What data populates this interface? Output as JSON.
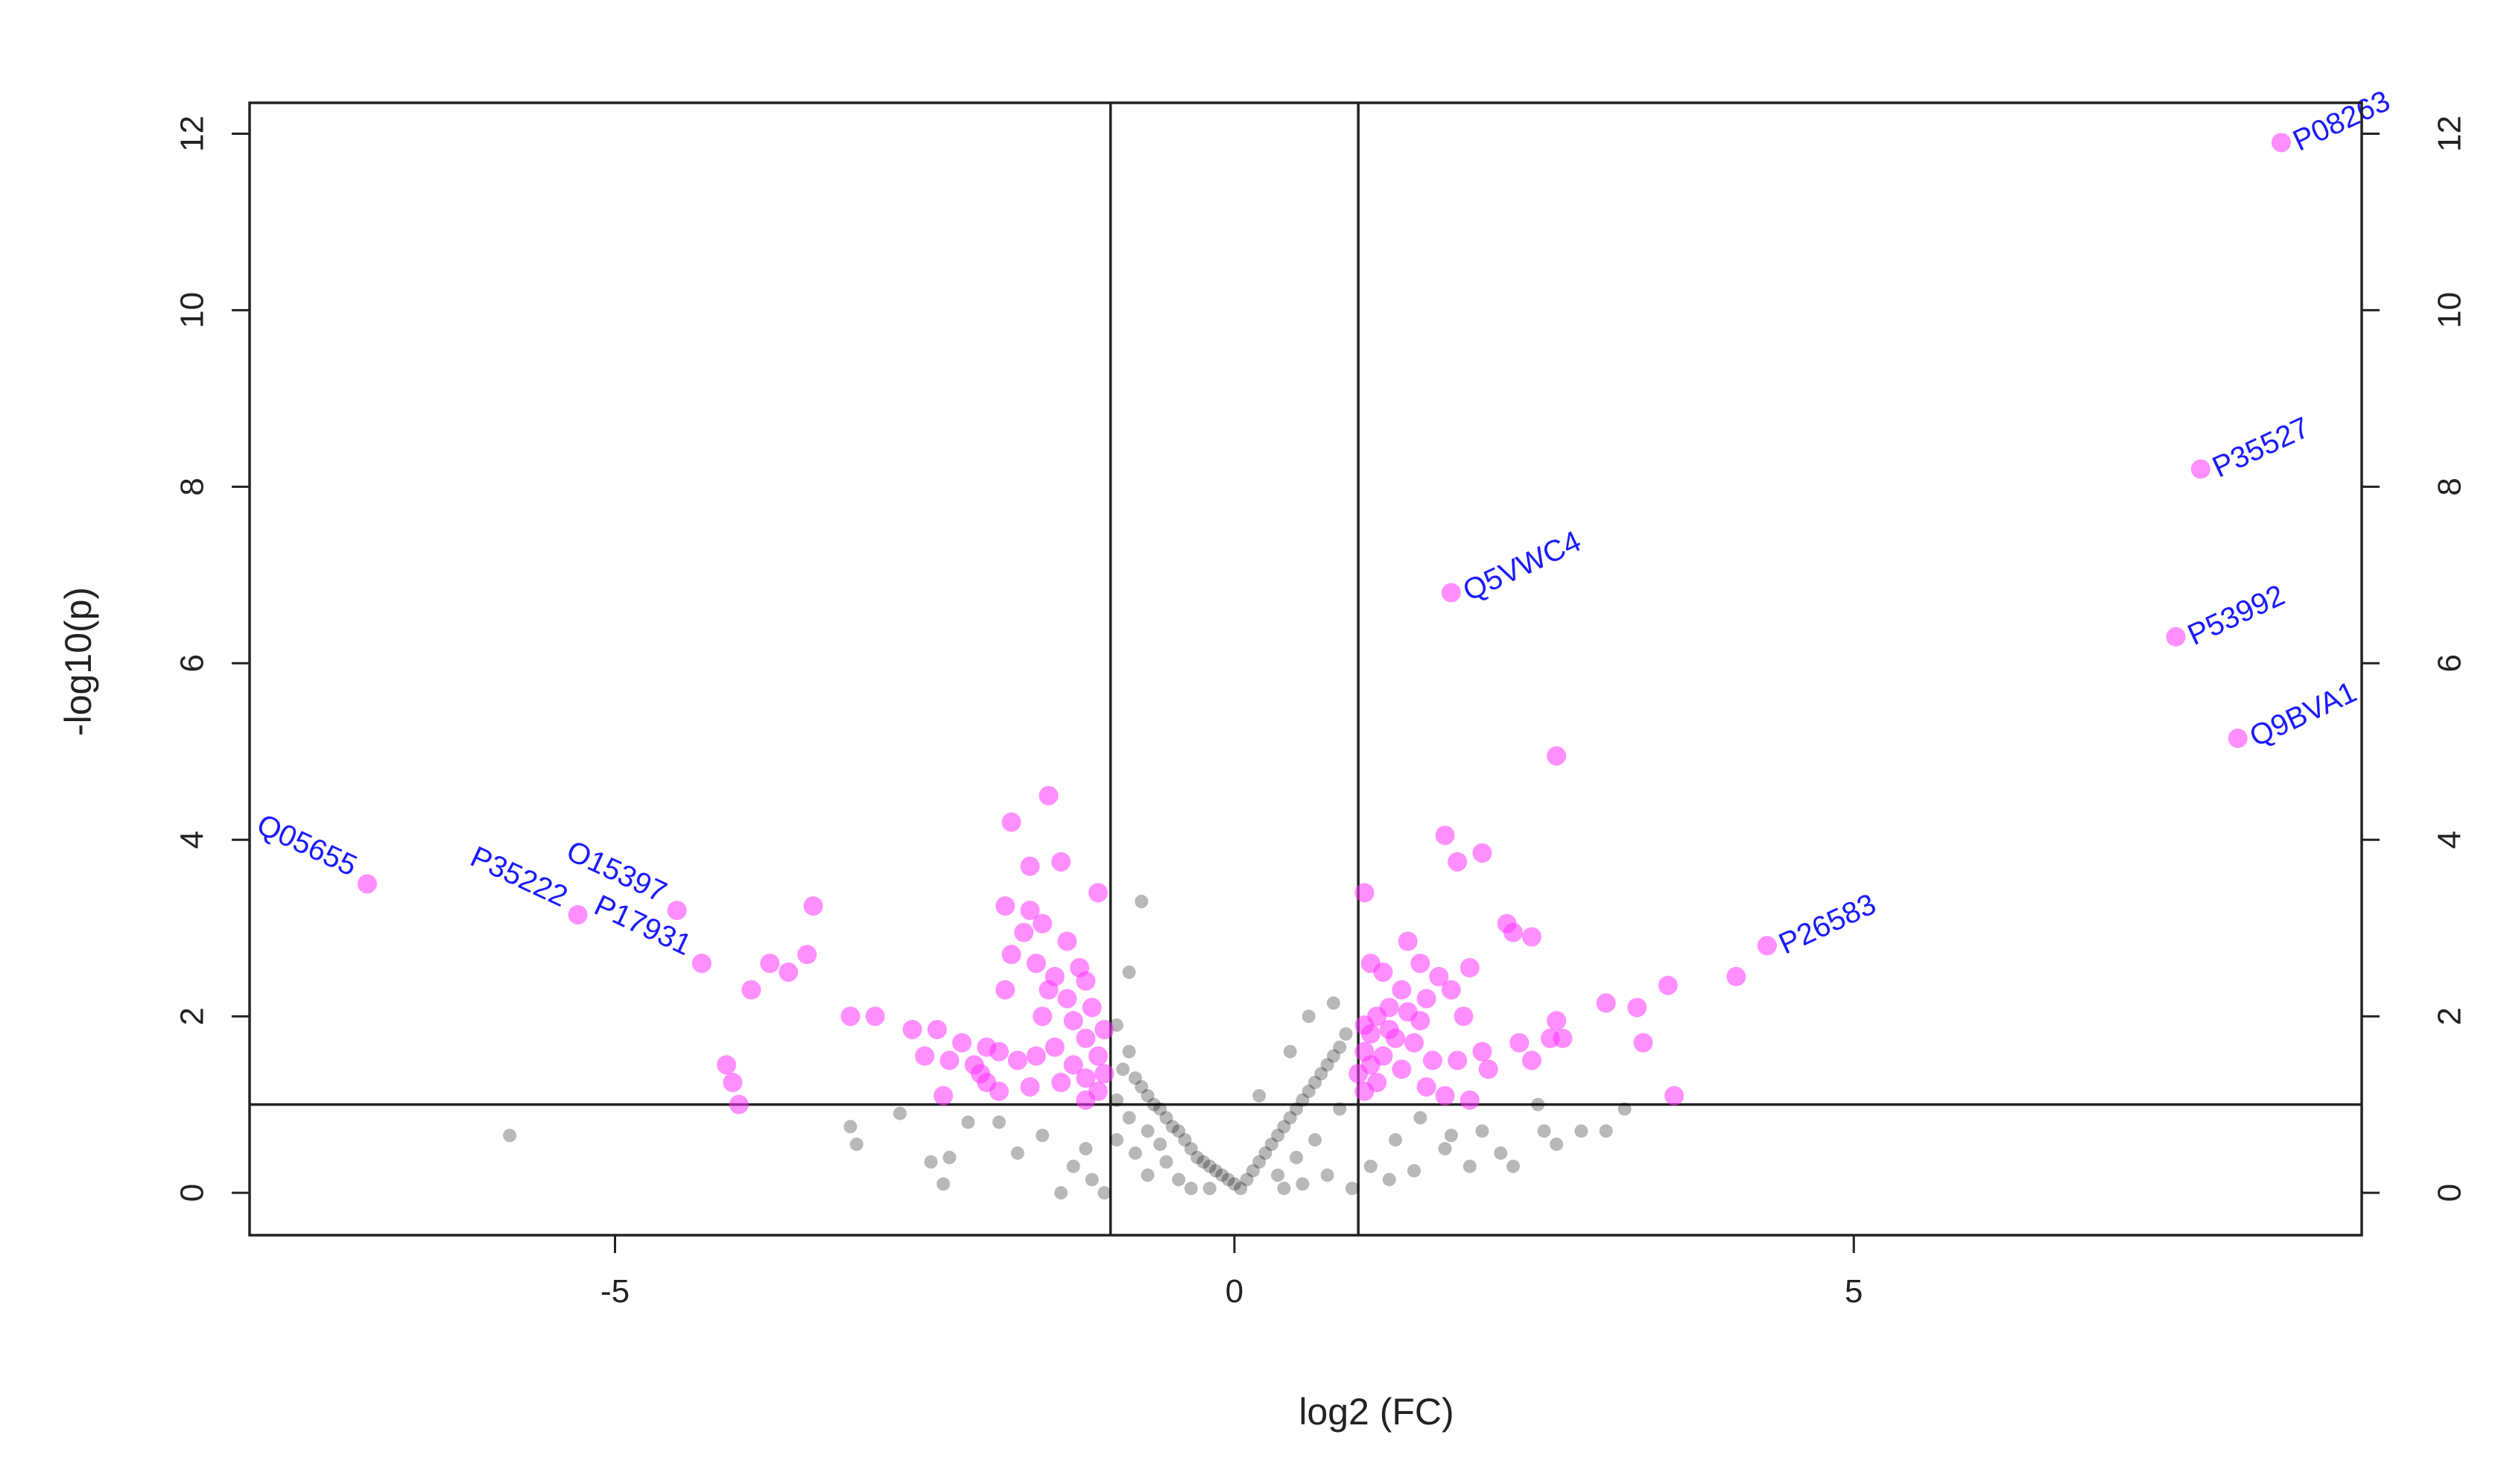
{
  "chart_data": {
    "type": "scatter",
    "xlabel": "log2 (FC)",
    "ylabel": "-log10(p)",
    "xlim": [
      -7.95,
      9.1
    ],
    "ylim": [
      -0.48,
      12.35
    ],
    "x_ticks": [
      -5,
      0,
      5
    ],
    "y_ticks": [
      0,
      2,
      4,
      6,
      8,
      10,
      12
    ],
    "y_ticks_right": [
      0,
      2,
      4,
      6,
      8,
      10,
      12
    ],
    "vlines": [
      -1,
      1
    ],
    "hline": 1,
    "grid": false,
    "colors": {
      "significant": "#ff33ff",
      "nonsignificant": "#000000",
      "labels": "#1a1aff"
    },
    "significant_points": [
      {
        "x": 8.45,
        "y": 11.9,
        "label": "P08263"
      },
      {
        "x": 7.8,
        "y": 8.2,
        "label": "P35527"
      },
      {
        "x": 7.6,
        "y": 6.3,
        "label": "P53992"
      },
      {
        "x": 8.1,
        "y": 5.15,
        "label": "Q9BVA1"
      },
      {
        "x": 1.75,
        "y": 6.8,
        "label": "Q5VWC4"
      },
      {
        "x": 4.3,
        "y": 2.8,
        "label": "P26583"
      },
      {
        "x": -7.0,
        "y": 3.5,
        "label": "Q05655"
      },
      {
        "x": -4.5,
        "y": 3.2,
        "label": "O15397"
      },
      {
        "x": -5.3,
        "y": 3.15,
        "label": "P35222"
      },
      {
        "x": -4.3,
        "y": 2.6,
        "label": "P17931"
      },
      {
        "x": 2.6,
        "y": 4.95
      },
      {
        "x": 1.7,
        "y": 4.05
      },
      {
        "x": 2.0,
        "y": 3.85
      },
      {
        "x": 1.8,
        "y": 3.75
      },
      {
        "x": 1.05,
        "y": 3.4
      },
      {
        "x": 2.2,
        "y": 3.05
      },
      {
        "x": 2.4,
        "y": 2.9
      },
      {
        "x": 2.25,
        "y": 2.95
      },
      {
        "x": 1.4,
        "y": 2.85
      },
      {
        "x": 1.9,
        "y": 2.55
      },
      {
        "x": 1.5,
        "y": 2.6
      },
      {
        "x": 1.2,
        "y": 2.5
      },
      {
        "x": 1.65,
        "y": 2.45
      },
      {
        "x": 1.1,
        "y": 2.6
      },
      {
        "x": 1.35,
        "y": 2.3
      },
      {
        "x": 1.55,
        "y": 2.2
      },
      {
        "x": 1.25,
        "y": 2.1
      },
      {
        "x": 1.15,
        "y": 2.0
      },
      {
        "x": 1.05,
        "y": 1.9
      },
      {
        "x": 1.1,
        "y": 1.8
      },
      {
        "x": 1.3,
        "y": 1.75
      },
      {
        "x": 1.45,
        "y": 1.7
      },
      {
        "x": 1.05,
        "y": 1.6
      },
      {
        "x": 1.2,
        "y": 1.55
      },
      {
        "x": 1.1,
        "y": 1.45
      },
      {
        "x": 1.0,
        "y": 1.35
      },
      {
        "x": 1.15,
        "y": 1.25
      },
      {
        "x": 1.05,
        "y": 1.15
      },
      {
        "x": 1.35,
        "y": 1.4
      },
      {
        "x": 1.6,
        "y": 1.5
      },
      {
        "x": 1.85,
        "y": 2.0
      },
      {
        "x": 1.8,
        "y": 1.5
      },
      {
        "x": 2.0,
        "y": 1.6
      },
      {
        "x": 2.3,
        "y": 1.7
      },
      {
        "x": 2.4,
        "y": 1.5
      },
      {
        "x": 2.55,
        "y": 1.75
      },
      {
        "x": 2.6,
        "y": 1.95
      },
      {
        "x": 2.65,
        "y": 1.75
      },
      {
        "x": 2.05,
        "y": 1.4
      },
      {
        "x": 1.55,
        "y": 1.2
      },
      {
        "x": 1.7,
        "y": 1.1
      },
      {
        "x": 1.9,
        "y": 1.05
      },
      {
        "x": 3.0,
        "y": 2.15
      },
      {
        "x": 3.25,
        "y": 2.1
      },
      {
        "x": 3.3,
        "y": 1.7
      },
      {
        "x": 3.5,
        "y": 2.35
      },
      {
        "x": 4.05,
        "y": 2.45
      },
      {
        "x": 3.55,
        "y": 1.1
      },
      {
        "x": 1.5,
        "y": 1.95
      },
      {
        "x": 1.4,
        "y": 2.05
      },
      {
        "x": 1.25,
        "y": 1.85
      },
      {
        "x": 1.75,
        "y": 2.3
      },
      {
        "x": -1.5,
        "y": 4.5
      },
      {
        "x": -1.8,
        "y": 4.2
      },
      {
        "x": -1.65,
        "y": 3.7
      },
      {
        "x": -1.4,
        "y": 3.75
      },
      {
        "x": -1.1,
        "y": 3.4
      },
      {
        "x": -1.85,
        "y": 3.25
      },
      {
        "x": -1.65,
        "y": 3.2
      },
      {
        "x": -1.55,
        "y": 3.05
      },
      {
        "x": -1.7,
        "y": 2.95
      },
      {
        "x": -1.35,
        "y": 2.85
      },
      {
        "x": -1.8,
        "y": 2.7
      },
      {
        "x": -1.6,
        "y": 2.6
      },
      {
        "x": -1.25,
        "y": 2.55
      },
      {
        "x": -1.45,
        "y": 2.45
      },
      {
        "x": -1.2,
        "y": 2.4
      },
      {
        "x": -1.5,
        "y": 2.3
      },
      {
        "x": -1.35,
        "y": 2.2
      },
      {
        "x": -1.15,
        "y": 2.1
      },
      {
        "x": -1.55,
        "y": 2.0
      },
      {
        "x": -1.3,
        "y": 1.95
      },
      {
        "x": -1.05,
        "y": 1.85
      },
      {
        "x": -1.2,
        "y": 1.75
      },
      {
        "x": -1.45,
        "y": 1.65
      },
      {
        "x": -1.1,
        "y": 1.55
      },
      {
        "x": -1.3,
        "y": 1.45
      },
      {
        "x": -1.05,
        "y": 1.35
      },
      {
        "x": -1.2,
        "y": 1.3
      },
      {
        "x": -1.4,
        "y": 1.25
      },
      {
        "x": -1.1,
        "y": 1.15
      },
      {
        "x": -1.2,
        "y": 1.05
      },
      {
        "x": -1.75,
        "y": 1.5
      },
      {
        "x": -1.9,
        "y": 1.6
      },
      {
        "x": -2.0,
        "y": 1.65
      },
      {
        "x": -2.2,
        "y": 1.7
      },
      {
        "x": -2.1,
        "y": 1.45
      },
      {
        "x": -2.3,
        "y": 1.5
      },
      {
        "x": -2.5,
        "y": 1.55
      },
      {
        "x": -2.4,
        "y": 1.85
      },
      {
        "x": -2.6,
        "y": 1.85
      },
      {
        "x": -2.35,
        "y": 1.1
      },
      {
        "x": -1.9,
        "y": 1.15
      },
      {
        "x": -1.65,
        "y": 1.2
      },
      {
        "x": -2.05,
        "y": 1.35
      },
      {
        "x": -1.6,
        "y": 1.55
      },
      {
        "x": -2.9,
        "y": 2.0
      },
      {
        "x": -3.1,
        "y": 2.0
      },
      {
        "x": -3.45,
        "y": 2.7
      },
      {
        "x": -3.4,
        "y": 3.25
      },
      {
        "x": -3.6,
        "y": 2.5
      },
      {
        "x": -3.75,
        "y": 2.6
      },
      {
        "x": -3.9,
        "y": 2.3
      },
      {
        "x": -4.1,
        "y": 1.45
      },
      {
        "x": -4.05,
        "y": 1.25
      },
      {
        "x": -4.0,
        "y": 1.0
      },
      {
        "x": -1.85,
        "y": 2.3
      },
      {
        "x": -2.0,
        "y": 1.25
      }
    ],
    "nonsignificant_points": [
      {
        "x": -5.85,
        "y": 0.65
      },
      {
        "x": -3.1,
        "y": 0.75
      },
      {
        "x": -3.05,
        "y": 0.55
      },
      {
        "x": -2.7,
        "y": 0.9
      },
      {
        "x": -2.45,
        "y": 0.35
      },
      {
        "x": -2.35,
        "y": 0.1
      },
      {
        "x": -2.3,
        "y": 0.4
      },
      {
        "x": -2.15,
        "y": 0.8
      },
      {
        "x": -1.9,
        "y": 0.8
      },
      {
        "x": -1.75,
        "y": 0.45
      },
      {
        "x": -1.55,
        "y": 0.65
      },
      {
        "x": -1.4,
        "y": 0.0
      },
      {
        "x": -1.3,
        "y": 0.3
      },
      {
        "x": -1.2,
        "y": 0.5
      },
      {
        "x": -1.15,
        "y": 0.15
      },
      {
        "x": -1.05,
        "y": 0.0
      },
      {
        "x": -0.85,
        "y": 2.5
      },
      {
        "x": -0.75,
        "y": 3.3
      },
      {
        "x": -0.95,
        "y": 1.9
      },
      {
        "x": -0.85,
        "y": 1.6
      },
      {
        "x": -0.9,
        "y": 1.4
      },
      {
        "x": -0.8,
        "y": 1.3
      },
      {
        "x": -0.75,
        "y": 1.2
      },
      {
        "x": -0.7,
        "y": 1.1
      },
      {
        "x": -0.65,
        "y": 1.0
      },
      {
        "x": -0.6,
        "y": 0.95
      },
      {
        "x": -0.55,
        "y": 0.85
      },
      {
        "x": -0.5,
        "y": 0.75
      },
      {
        "x": -0.45,
        "y": 0.7
      },
      {
        "x": -0.4,
        "y": 0.6
      },
      {
        "x": -0.35,
        "y": 0.5
      },
      {
        "x": -0.3,
        "y": 0.4
      },
      {
        "x": -0.25,
        "y": 0.35
      },
      {
        "x": -0.2,
        "y": 0.3
      },
      {
        "x": -0.15,
        "y": 0.25
      },
      {
        "x": -0.1,
        "y": 0.2
      },
      {
        "x": -0.05,
        "y": 0.15
      },
      {
        "x": 0.0,
        "y": 0.1
      },
      {
        "x": 0.05,
        "y": 0.05
      },
      {
        "x": -0.55,
        "y": 0.35
      },
      {
        "x": -0.45,
        "y": 0.15
      },
      {
        "x": -0.35,
        "y": 0.05
      },
      {
        "x": -0.7,
        "y": 0.2
      },
      {
        "x": -0.8,
        "y": 0.45
      },
      {
        "x": -0.85,
        "y": 0.85
      },
      {
        "x": -0.6,
        "y": 0.55
      },
      {
        "x": -0.95,
        "y": 1.05
      },
      {
        "x": -0.7,
        "y": 0.7
      },
      {
        "x": 0.1,
        "y": 0.15
      },
      {
        "x": 0.15,
        "y": 0.25
      },
      {
        "x": 0.2,
        "y": 0.35
      },
      {
        "x": 0.25,
        "y": 0.45
      },
      {
        "x": 0.3,
        "y": 0.55
      },
      {
        "x": 0.35,
        "y": 0.65
      },
      {
        "x": 0.4,
        "y": 0.75
      },
      {
        "x": 0.45,
        "y": 0.85
      },
      {
        "x": 0.5,
        "y": 0.95
      },
      {
        "x": 0.55,
        "y": 1.05
      },
      {
        "x": 0.6,
        "y": 1.15
      },
      {
        "x": 0.65,
        "y": 1.25
      },
      {
        "x": 0.7,
        "y": 1.35
      },
      {
        "x": 0.75,
        "y": 1.45
      },
      {
        "x": 0.8,
        "y": 1.55
      },
      {
        "x": 0.85,
        "y": 1.65
      },
      {
        "x": 0.9,
        "y": 1.8
      },
      {
        "x": 0.6,
        "y": 2.0
      },
      {
        "x": 0.8,
        "y": 2.15
      },
      {
        "x": 0.45,
        "y": 1.6
      },
      {
        "x": 0.2,
        "y": 1.1
      },
      {
        "x": 0.35,
        "y": 0.2
      },
      {
        "x": 0.55,
        "y": 0.1
      },
      {
        "x": 0.75,
        "y": 0.2
      },
      {
        "x": 0.95,
        "y": 0.05
      },
      {
        "x": 0.65,
        "y": 0.6
      },
      {
        "x": 0.85,
        "y": 0.95
      },
      {
        "x": 0.5,
        "y": 0.4
      },
      {
        "x": 1.1,
        "y": 0.3
      },
      {
        "x": 1.3,
        "y": 0.6
      },
      {
        "x": 1.5,
        "y": 0.85
      },
      {
        "x": 1.7,
        "y": 0.5
      },
      {
        "x": 1.9,
        "y": 0.3
      },
      {
        "x": 2.0,
        "y": 0.7
      },
      {
        "x": 2.15,
        "y": 0.45
      },
      {
        "x": 2.25,
        "y": 0.3
      },
      {
        "x": 2.5,
        "y": 0.7
      },
      {
        "x": 2.6,
        "y": 0.55
      },
      {
        "x": 2.8,
        "y": 0.7
      },
      {
        "x": 3.0,
        "y": 0.7
      },
      {
        "x": 3.15,
        "y": 0.95
      },
      {
        "x": 1.45,
        "y": 0.25
      },
      {
        "x": 1.25,
        "y": 0.15
      },
      {
        "x": 2.45,
        "y": 1.0
      },
      {
        "x": 1.75,
        "y": 0.65
      },
      {
        "x": 0.4,
        "y": 0.05
      },
      {
        "x": -0.2,
        "y": 0.05
      },
      {
        "x": -0.95,
        "y": 0.6
      }
    ],
    "label_angle_deg": 25,
    "label_offsets_note": ""
  }
}
